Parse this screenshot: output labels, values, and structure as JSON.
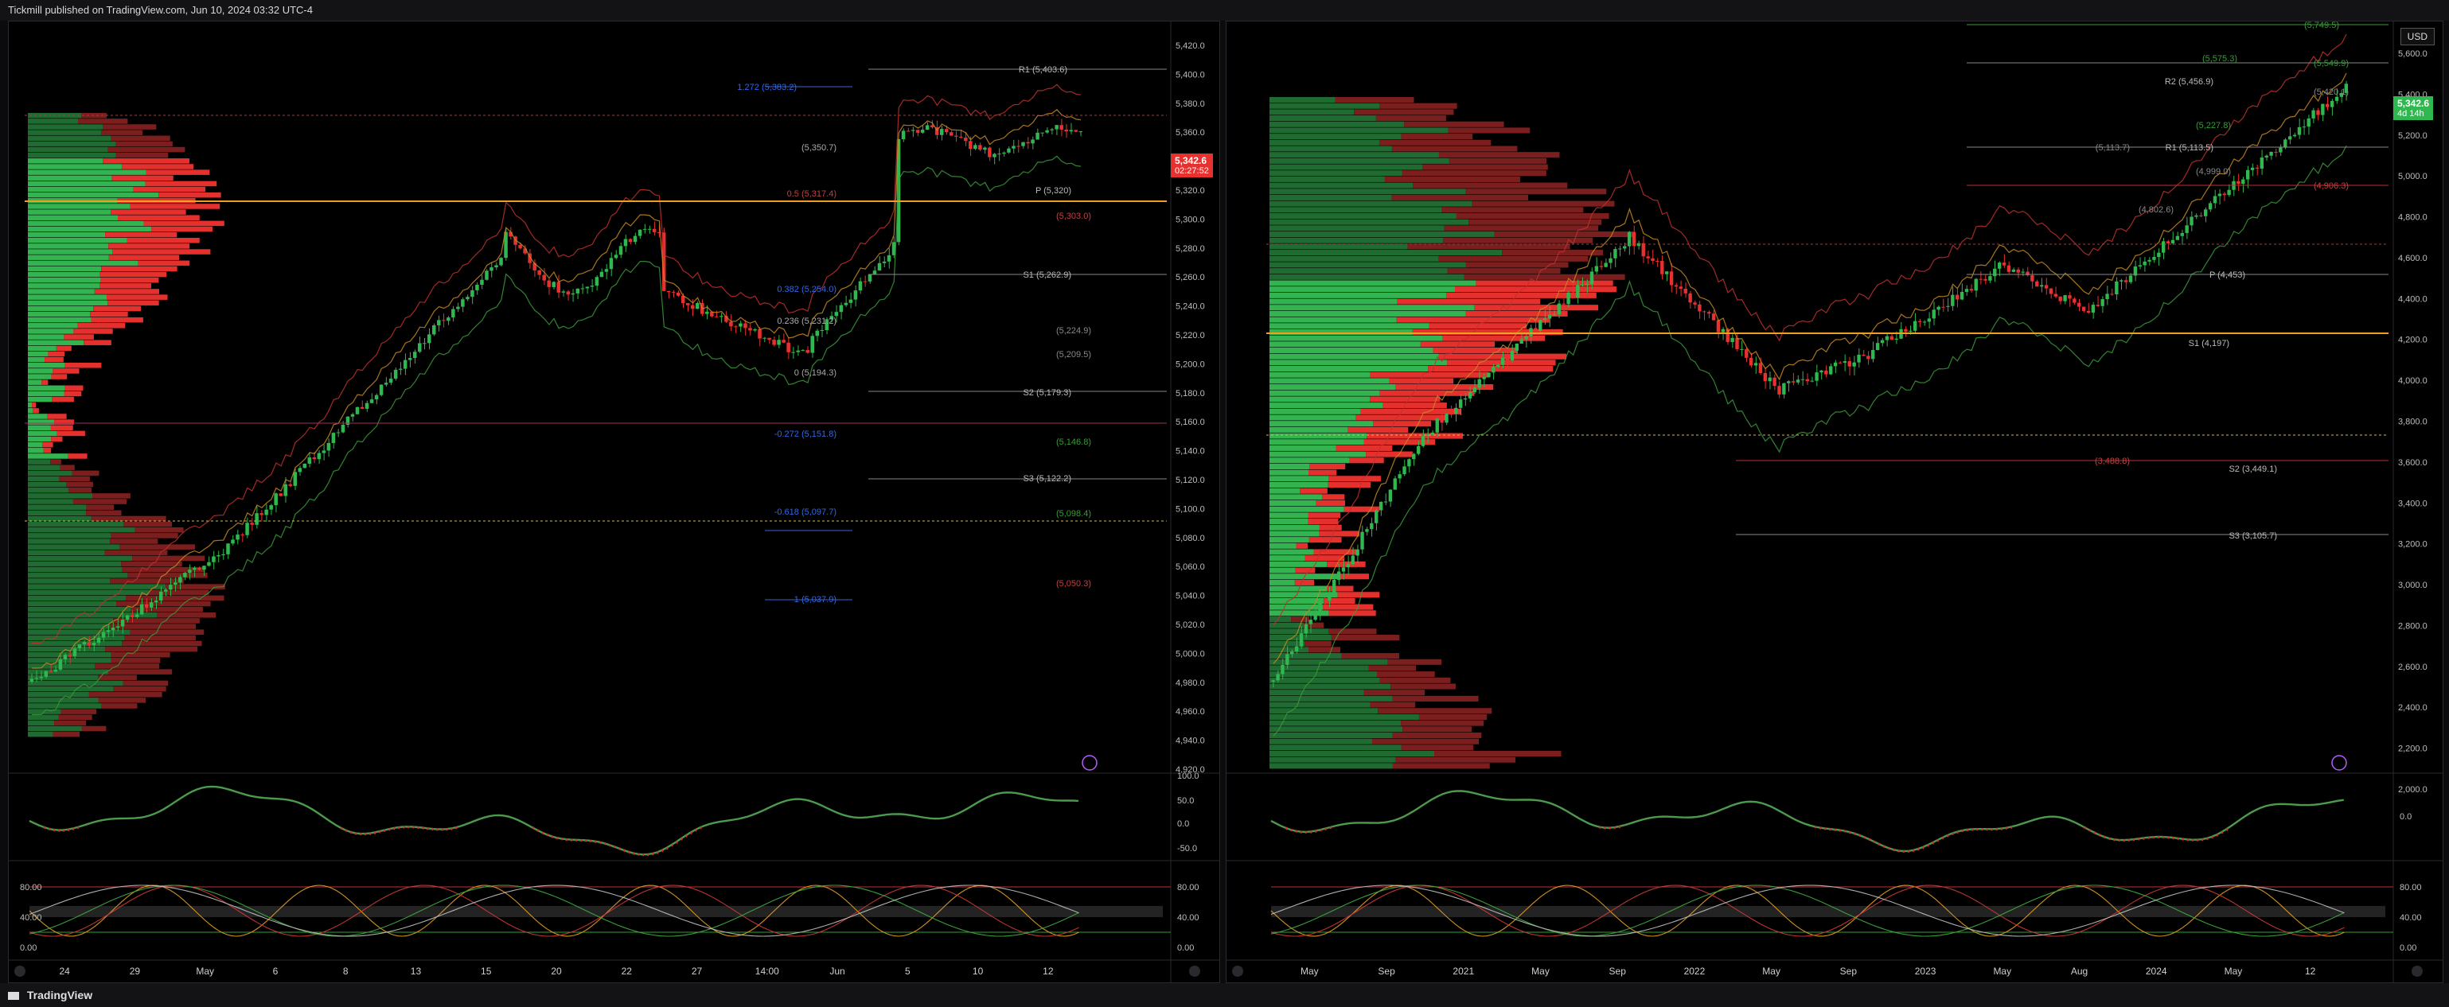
{
  "header": {
    "publisher_text": "Tickmill published on TradingView.com, Jun 10, 2024 03:32 UTC-4"
  },
  "footer": {
    "brand": "TradingView"
  },
  "colors": {
    "bull": "#2fb84f",
    "bear": "#e8312f",
    "accent_blue": "#3366dd",
    "orange": "#f0a020",
    "gold": "#e3b341"
  },
  "left_chart": {
    "price_axis": [
      "5,420.0",
      "5,400.0",
      "5,380.0",
      "5,360.0",
      "5,340.0",
      "5,320.0",
      "5,300.0",
      "5,280.0",
      "5,260.0",
      "5,240.0",
      "5,220.0",
      "5,200.0",
      "5,180.0",
      "5,160.0",
      "5,140.0",
      "5,120.0",
      "5,100.0",
      "5,080.0",
      "5,060.0",
      "5,040.0",
      "5,020.0",
      "5,000.0",
      "4,980.0",
      "4,960.0",
      "4,940.0",
      "4,920.0"
    ],
    "current_price": "5,342.6",
    "countdown": "02:27:52",
    "time_axis": [
      "24",
      "29",
      "May",
      "6",
      "8",
      "13",
      "15",
      "20",
      "22",
      "27",
      "14:00",
      "Jun",
      "5",
      "10",
      "12"
    ],
    "fib_labels": [
      "1.272 (5,383.2)",
      "0.5 (5,317.4)",
      "0.382 (5,254.0)",
      "0.236 (5,231.2)",
      "0 (5,194.3)",
      "-0.272 (5,151.8)",
      "-0.618 (5,097.7)",
      "-1 (5,037.9)"
    ],
    "pivot_labels": [
      "R1 (5,403.6)",
      "(5,350.7)",
      "P (5,320)",
      "(5,303.0)",
      "S1 (5,262.9)",
      "(5,224.9)",
      "(5,209.5)",
      "S2 (5,179.3)",
      "(5,146.8)",
      "S3 (5,122.2)",
      "(5,098.4)",
      "(5,050.3)"
    ],
    "osc1_axis": [
      "100.0",
      "50.0",
      "0.0",
      "-50.0"
    ],
    "osc2_axis": [
      "80.00",
      "40.00",
      "0.00"
    ],
    "osc2_axis_left": [
      "80.00",
      "40.00",
      "0.00"
    ]
  },
  "right_chart": {
    "currency_button": "USD",
    "price_axis": [
      "5,600.0",
      "5,400.0",
      "5,200.0",
      "5,000.0",
      "4,800.0",
      "4,600.0",
      "4,400.0",
      "4,200.0",
      "4,000.0",
      "3,800.0",
      "3,600.0",
      "3,400.0",
      "3,200.0",
      "3,000.0",
      "2,800.0",
      "2,600.0",
      "2,400.0",
      "2,200.0",
      "2,000.0"
    ],
    "current_price": "5,342.6",
    "timeframe_label": "4d 14h",
    "time_axis": [
      "May",
      "Sep",
      "2021",
      "May",
      "Sep",
      "2022",
      "May",
      "Sep",
      "2023",
      "May",
      "Aug",
      "2024",
      "May",
      "12"
    ],
    "pivot_labels": [
      "(5,749.5)",
      "(5,575.3)",
      "(5,549.9)",
      "R2 (5,456.9)",
      "(5,420.1)",
      "(5,227.8)",
      "R1 (5,113.5)",
      "(5,113.7)",
      "(4,999.0)",
      "(4,906.3)",
      "(4,802.6)",
      "P (4,453)",
      "S1 (4,197)",
      "(3,488.8)",
      "S2 (3,449.1)",
      "S3 (3,105.7)"
    ],
    "osc1_axis": [
      "0.0"
    ],
    "osc2_axis": [
      "80.00",
      "40.00",
      "0.00"
    ]
  }
}
